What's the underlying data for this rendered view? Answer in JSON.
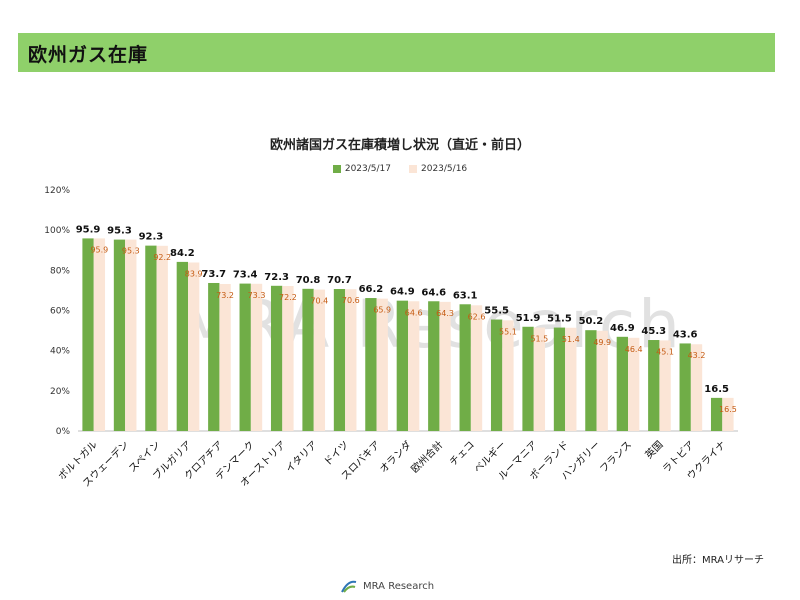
{
  "header": {
    "title": "欧州ガス在庫"
  },
  "source_note": "出所：MRAリサーチ",
  "footer": {
    "logo_text": "MRA Research"
  },
  "watermark": "MRA Research",
  "colors": {
    "header_bg": "#8fd06a",
    "series1": "#70ad47",
    "series2": "#fbe5d6",
    "label2": "#c55a11"
  },
  "chart_data": {
    "type": "bar",
    "title": "欧州諸国ガス在庫積増し状況（直近・前日）",
    "xlabel": "",
    "ylabel": "",
    "ylim": [
      0,
      120
    ],
    "yticks": [
      "0%",
      "20%",
      "40%",
      "60%",
      "80%",
      "100%",
      "120%"
    ],
    "legend_position": "top",
    "grid": false,
    "categories": [
      "ポルトガル",
      "スウェーデン",
      "スペイン",
      "ブルガリア",
      "クロアチア",
      "デンマーク",
      "オーストリア",
      "イタリア",
      "ドイツ",
      "スロバキア",
      "オランダ",
      "欧州合計",
      "チェコ",
      "ベルギー",
      "ルーマニア",
      "ポーランド",
      "ハンガリー",
      "フランス",
      "英国",
      "ラトビア",
      "ウクライナ"
    ],
    "series": [
      {
        "name": "2023/5/17",
        "values": [
          95.9,
          95.3,
          92.3,
          84.2,
          73.7,
          73.4,
          72.3,
          70.8,
          70.7,
          66.2,
          64.9,
          64.6,
          63.1,
          55.5,
          51.9,
          51.5,
          50.2,
          46.9,
          45.3,
          43.6,
          16.5
        ]
      },
      {
        "name": "2023/5/16",
        "values": [
          95.9,
          95.3,
          92.2,
          83.9,
          73.2,
          73.3,
          72.2,
          70.4,
          70.6,
          65.9,
          64.6,
          64.3,
          62.6,
          55.1,
          51.5,
          51.4,
          49.9,
          46.4,
          45.1,
          43.2,
          16.5
        ]
      }
    ]
  }
}
